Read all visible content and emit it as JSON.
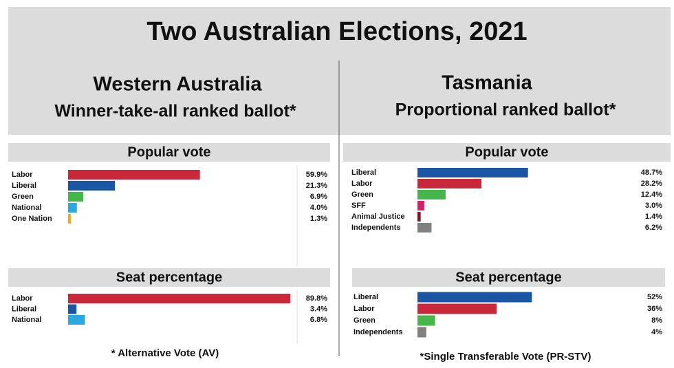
{
  "title": "Two Australian Elections, 2021",
  "panels": [
    {
      "heading": "Western Australia",
      "subheading": "Winner-take-all ranked ballot*",
      "footnote": "* Alternative Vote (AV)"
    },
    {
      "heading": "Tasmania",
      "subheading": "Proportional ranked ballot*",
      "footnote": "*Single Transferable Vote (PR-STV)"
    }
  ],
  "chart_data": [
    {
      "type": "bar",
      "title": "Popular vote",
      "categories": [
        "Labor",
        "Liberal",
        "Green",
        "National",
        "One Nation"
      ],
      "values": [
        59.9,
        21.3,
        6.9,
        4.0,
        1.3
      ],
      "value_labels": [
        "59.9%",
        "21.3%",
        "6.9%",
        "4.0%",
        "1.3%"
      ],
      "colors": [
        "#c9283a",
        "#1a56a4",
        "#45b649",
        "#2ba8e0",
        "#f7a823"
      ]
    },
    {
      "type": "bar",
      "title": "Seat percentage",
      "categories": [
        "Labor",
        "Liberal",
        "National"
      ],
      "values": [
        89.8,
        3.4,
        6.8
      ],
      "value_labels": [
        "89.8%",
        "3.4%",
        "6.8%"
      ],
      "colors": [
        "#c9283a",
        "#1a56a4",
        "#2ba8e0"
      ]
    },
    {
      "type": "bar",
      "title": "Popular vote",
      "categories": [
        "Liberal",
        "Labor",
        "Green",
        "SFF",
        "Animal Justice",
        "Independents"
      ],
      "values": [
        48.7,
        28.2,
        12.4,
        3.0,
        1.4,
        6.2
      ],
      "value_labels": [
        "48.7%",
        "28.2%",
        "12.4%",
        "3.0%",
        "1.4%",
        "6.2%"
      ],
      "colors": [
        "#1a56a4",
        "#c9283a",
        "#45b649",
        "#d4206a",
        "#8b0f1a",
        "#808080"
      ]
    },
    {
      "type": "bar",
      "title": "Seat percentage",
      "categories": [
        "Liberal",
        "Labor",
        "Green",
        "Independents"
      ],
      "values": [
        52,
        36,
        8,
        4
      ],
      "value_labels": [
        "52%",
        "36%",
        "8%",
        "4%"
      ],
      "colors": [
        "#1a56a4",
        "#c9283a",
        "#45b649",
        "#808080"
      ]
    }
  ]
}
